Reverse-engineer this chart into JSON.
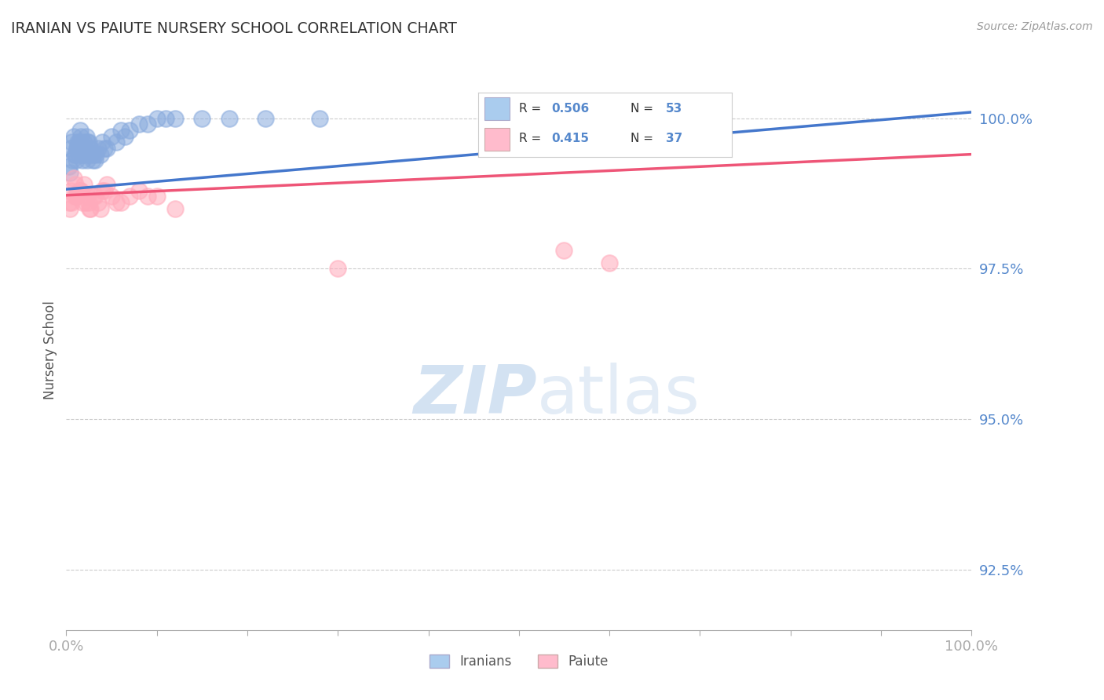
{
  "title": "IRANIAN VS PAIUTE NURSERY SCHOOL CORRELATION CHART",
  "source": "Source: ZipAtlas.com",
  "ylabel": "Nursery School",
  "xlabel": "",
  "watermark_zip": "ZIP",
  "watermark_atlas": "atlas",
  "iranians": {
    "label": "Iranians",
    "color": "#88AADD",
    "R": 0.506,
    "N": 53,
    "x": [
      0.3,
      0.5,
      0.6,
      0.8,
      1.0,
      1.1,
      1.2,
      1.3,
      1.4,
      1.5,
      1.6,
      1.7,
      1.8,
      1.9,
      2.0,
      2.1,
      2.2,
      2.3,
      2.4,
      2.5,
      2.7,
      3.0,
      3.2,
      3.5,
      3.8,
      4.0,
      4.5,
      5.0,
      5.5,
      6.0,
      7.0,
      8.0,
      9.0,
      10.0,
      11.0,
      12.0,
      15.0,
      18.0,
      22.0,
      28.0,
      0.4,
      0.7,
      0.9,
      1.15,
      1.45,
      1.75,
      2.05,
      2.35,
      2.65,
      2.95,
      3.3,
      4.2,
      6.5
    ],
    "y": [
      99.2,
      99.5,
      99.6,
      99.7,
      99.4,
      99.3,
      99.5,
      99.6,
      99.4,
      99.8,
      99.7,
      99.5,
      99.3,
      99.4,
      99.6,
      99.5,
      99.7,
      99.3,
      99.4,
      99.6,
      99.5,
      99.4,
      99.3,
      99.5,
      99.4,
      99.6,
      99.5,
      99.7,
      99.6,
      99.8,
      99.8,
      99.9,
      99.9,
      100.0,
      100.0,
      100.0,
      100.0,
      100.0,
      100.0,
      100.0,
      99.1,
      99.3,
      99.4,
      99.5,
      99.6,
      99.4,
      99.5,
      99.6,
      99.4,
      99.3,
      99.4,
      99.5,
      99.7
    ]
  },
  "paiute": {
    "label": "Paiute",
    "color": "#FFAABB",
    "R": 0.415,
    "N": 37,
    "x": [
      0.3,
      0.5,
      0.8,
      1.0,
      1.2,
      1.5,
      1.8,
      2.0,
      2.3,
      2.7,
      3.0,
      3.5,
      4.0,
      4.5,
      5.0,
      6.0,
      7.0,
      8.0,
      10.0,
      12.0,
      0.6,
      1.1,
      1.6,
      2.1,
      2.6,
      3.2,
      4.2,
      5.5,
      30.0,
      55.0,
      60.0,
      0.4,
      0.9,
      1.4,
      2.5,
      3.8,
      9.0
    ],
    "y": [
      98.6,
      98.8,
      99.0,
      98.9,
      98.7,
      98.8,
      98.6,
      98.9,
      98.7,
      98.5,
      98.7,
      98.6,
      98.8,
      98.9,
      98.7,
      98.6,
      98.7,
      98.8,
      98.7,
      98.5,
      98.6,
      98.7,
      98.8,
      98.6,
      98.5,
      98.7,
      98.8,
      98.6,
      97.5,
      97.8,
      97.6,
      98.5,
      98.7,
      98.8,
      98.6,
      98.5,
      98.7
    ]
  },
  "xlim": [
    0.0,
    100.0
  ],
  "ylim": [
    91.5,
    100.8
  ],
  "yticks": [
    92.5,
    95.0,
    97.5,
    100.0
  ],
  "ytick_labels": [
    "92.5%",
    "95.0%",
    "97.5%",
    "100.0%"
  ],
  "xtick_positions": [
    0,
    10,
    20,
    30,
    40,
    50,
    60,
    70,
    80,
    90,
    100
  ],
  "xtick_labels_show": [
    "0.0%",
    "",
    "",
    "",
    "",
    "",
    "",
    "",
    "",
    "",
    "100.0%"
  ],
  "grid_color": "#CCCCCC",
  "bg_color": "#FFFFFF",
  "title_color": "#333333",
  "tick_color": "#5588CC",
  "legend_box_color_iranian": "#AACCEE",
  "legend_box_color_paiute": "#FFBBCC",
  "line_color_iranian": "#4477CC",
  "line_color_paiute": "#EE5577",
  "line_y_start_iranian": 98.82,
  "line_y_end_iranian": 100.1,
  "line_y_start_paiute": 98.72,
  "line_y_end_paiute": 99.4
}
